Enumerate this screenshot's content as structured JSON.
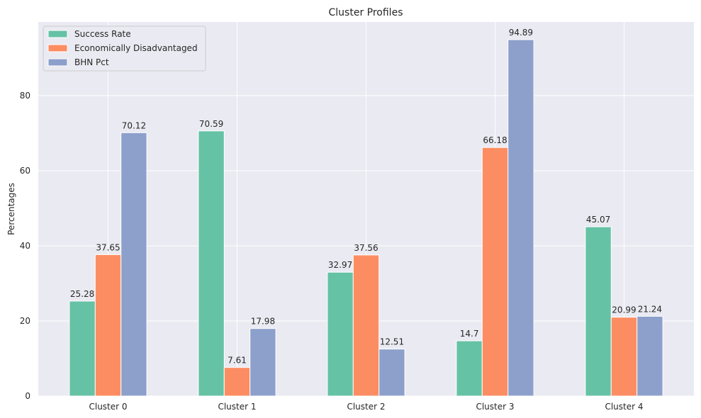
{
  "chart_data": {
    "type": "bar",
    "title": "Cluster Profiles",
    "xlabel": "",
    "ylabel": "Percentages",
    "categories": [
      "Cluster 0",
      "Cluster 1",
      "Cluster 2",
      "Cluster 3",
      "Cluster 4"
    ],
    "series": [
      {
        "name": "Success Rate",
        "color": "#66c2a5",
        "values": [
          25.28,
          70.59,
          32.97,
          14.7,
          45.07
        ],
        "labels": [
          "25.28",
          "70.59",
          "32.97",
          "14.7",
          "45.07"
        ]
      },
      {
        "name": "Economically Disadvantaged",
        "color": "#fc8d62",
        "values": [
          37.65,
          7.61,
          37.56,
          66.18,
          20.99
        ],
        "labels": [
          "37.65",
          "7.61",
          "37.56",
          "66.18",
          "20.99"
        ]
      },
      {
        "name": "BHN Pct",
        "color": "#8da0cb",
        "values": [
          70.12,
          17.98,
          12.51,
          94.89,
          21.24
        ],
        "labels": [
          "70.12",
          "17.98",
          "12.51",
          "94.89",
          "21.24"
        ]
      }
    ],
    "ylim": [
      0,
      99.6
    ],
    "yticks": [
      0,
      20,
      40,
      60,
      80
    ],
    "ytick_labels": [
      "0",
      "20",
      "40",
      "60",
      "80"
    ],
    "grid": true,
    "legend_position": "top-left",
    "background": "#eaeaf2",
    "grid_color": "#ffffff"
  }
}
